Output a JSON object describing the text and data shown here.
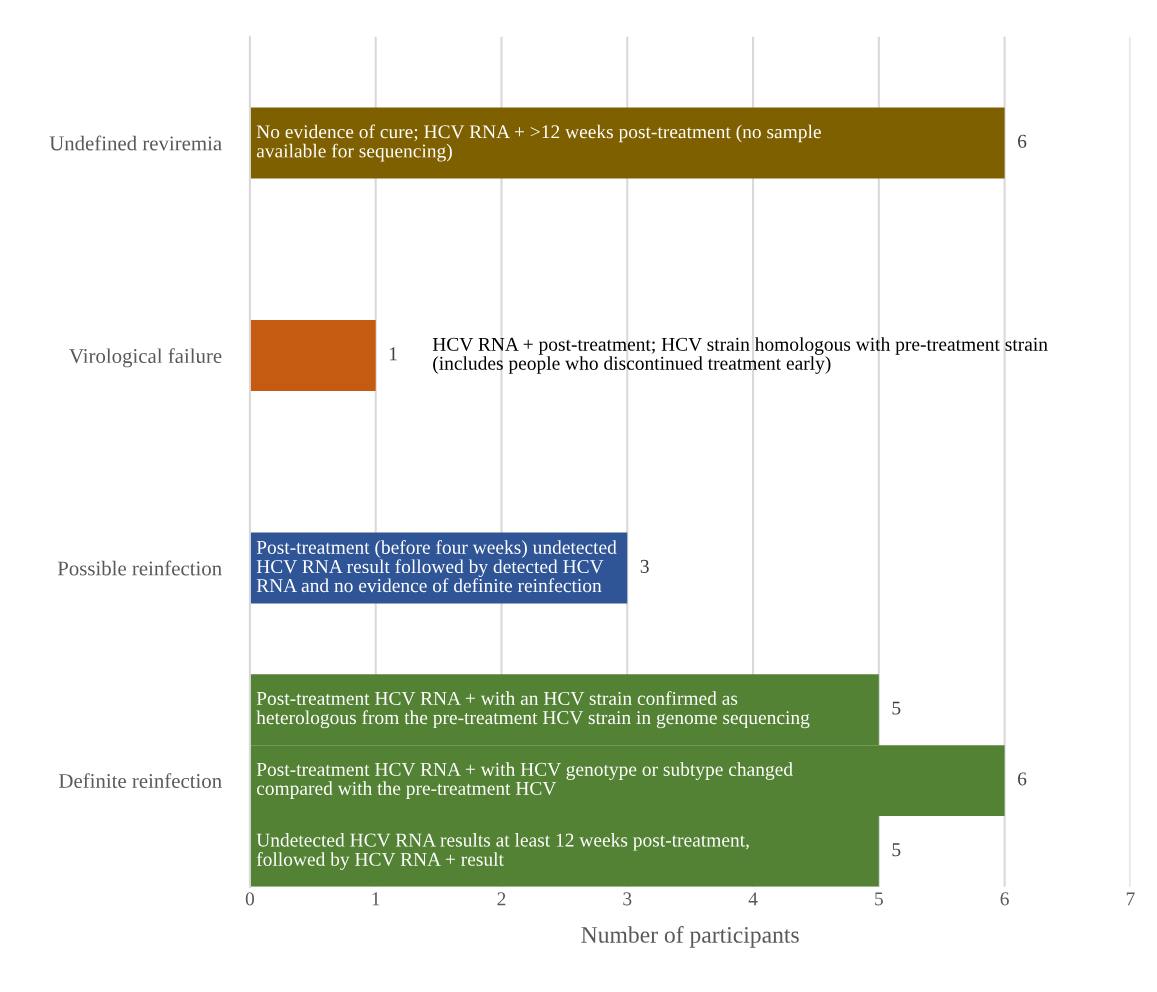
{
  "chart_data": {
    "type": "bar",
    "orientation": "horizontal",
    "xlabel": "Number of participants",
    "categories": [
      "Undefined reviremia",
      "Virological failure",
      "Possible reinfection",
      "Definite reinfection"
    ],
    "series": [
      {
        "color": "#548235",
        "values": [
          null,
          null,
          null,
          5
        ]
      },
      {
        "colors": [
          "#7f6000",
          "#c55a11",
          "#2f5597",
          "#548235"
        ],
        "values": [
          6,
          1,
          3,
          6
        ]
      },
      {
        "color": "#548235",
        "values": [
          null,
          null,
          null,
          5
        ]
      }
    ],
    "xlim": [
      0,
      7
    ],
    "xticks": [
      0,
      1,
      2,
      3,
      4,
      5,
      6,
      7
    ],
    "grid": "x",
    "legend": false,
    "data_labels": true,
    "annotations": [
      "No evidence of cure; HCV RNA + >12 weeks post-treatment (no sample\navailable for sequencing)",
      "HCV RNA + post-treatment; HCV strain homologous with pre-treatment strain\n(includes people who discontinued treatment early)",
      "Post-treatment (before four weeks) undetected\nHCV RNA result followed by detected HCV\nRNA and no evidence of definite reinfection",
      "Post-treatment HCV RNA + with an HCV strain confirmed as\nheterologous from the pre-treatment HCV strain in genome sequencing",
      "Post-treatment HCV RNA + with HCV genotype or subtype changed\ncompared with the pre-treatment HCV",
      "Undetected HCV RNA results at least 12 weeks post-treatment,\nfollowed by HCV RNA + result"
    ]
  }
}
